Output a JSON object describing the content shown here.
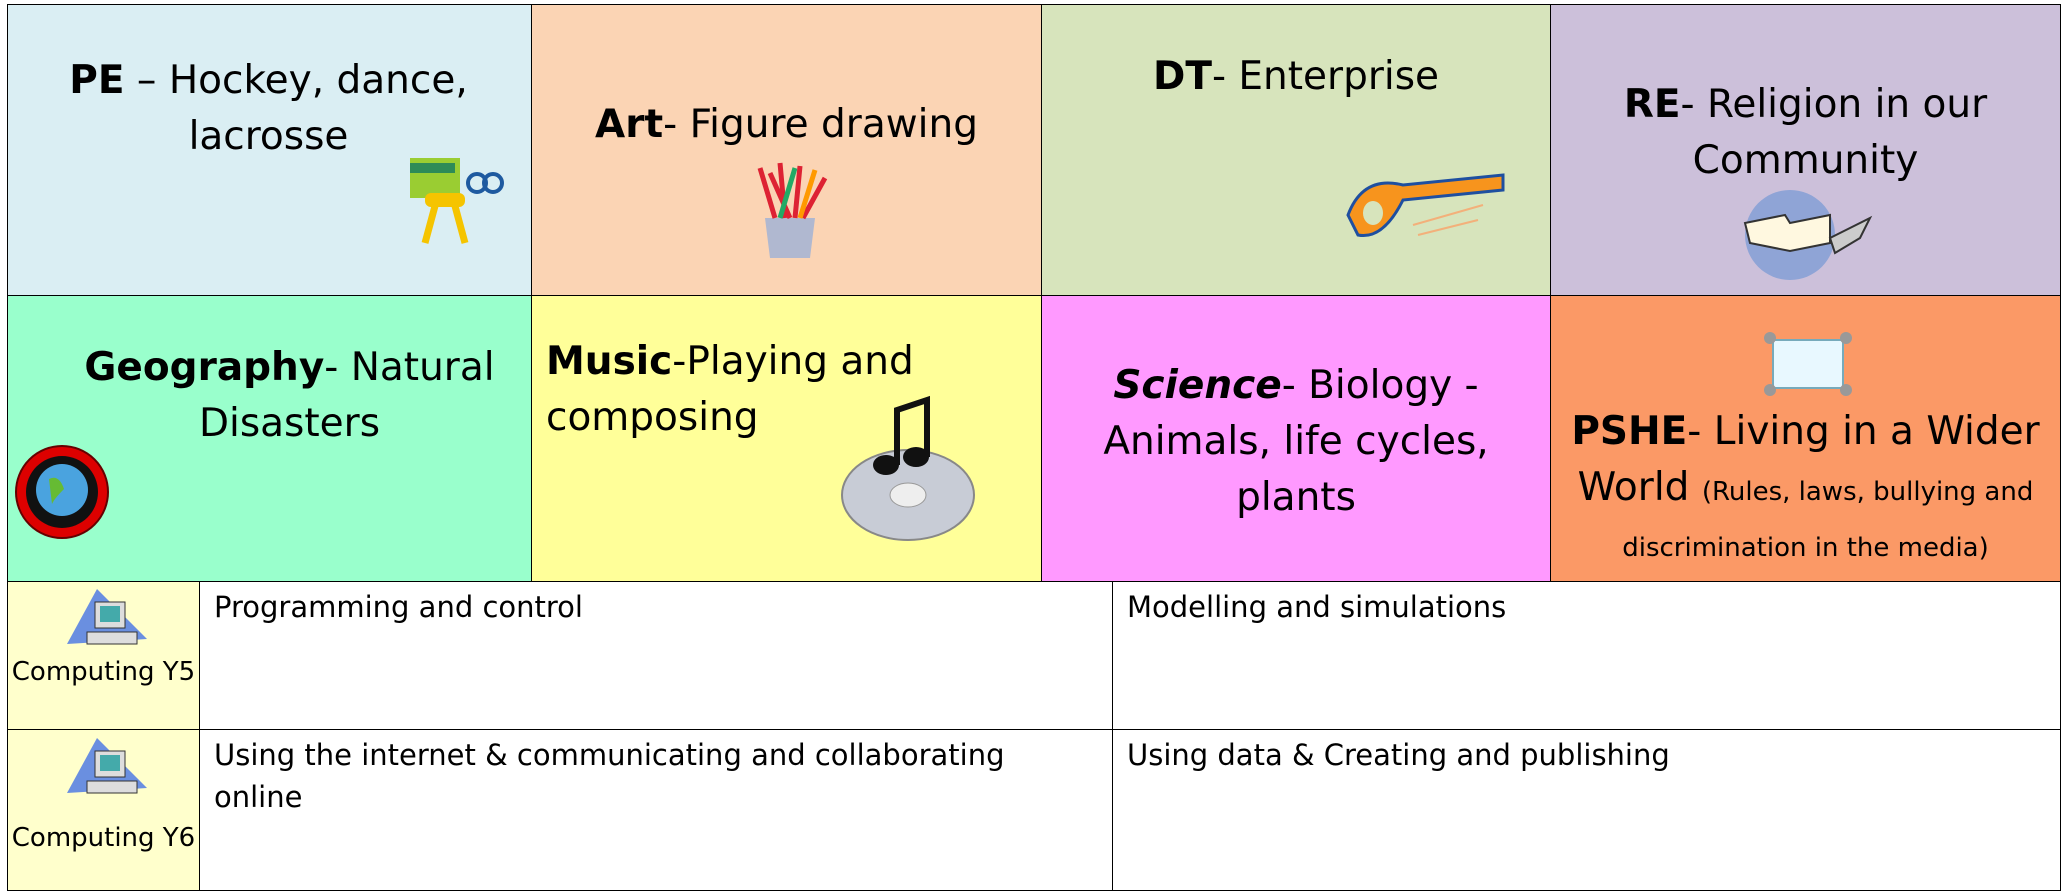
{
  "topics": [
    {
      "subject": "PE",
      "text": "– Hockey, dance, lacrosse"
    },
    {
      "subject": "Art",
      "text": "- Figure drawing"
    },
    {
      "subject": "DT",
      "text": "- Enterprise"
    },
    {
      "subject": "RE",
      "text": "- Religion in our Community"
    },
    {
      "subject": "Geography",
      "text": "- Natural Disasters"
    },
    {
      "subject": "Music",
      "text": "-Playing and composing"
    },
    {
      "subject": "Science",
      "text": "- Biology - Animals, life cycles, plants"
    },
    {
      "subject": "PSHE",
      "text": "- Living in a Wider World",
      "note": "(Rules, laws, bullying and discrimination in the media)"
    }
  ],
  "computing": [
    {
      "label": "Computing Y5",
      "cells": [
        "Programming and control",
        "Modelling and simulations"
      ]
    },
    {
      "label": "Computing Y6",
      "cells": [
        "Using the internet & communicating and collaborating online",
        "Using data & Creating and publishing"
      ]
    }
  ]
}
